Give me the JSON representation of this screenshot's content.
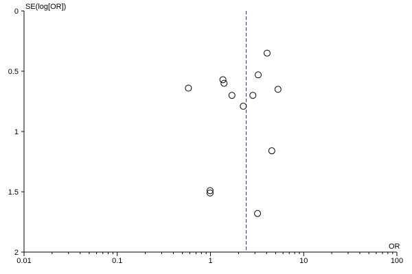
{
  "chart_data": {
    "type": "scatter",
    "plot_kind": "funnel",
    "xlabel": "OR",
    "ylabel": "SE(log[OR])",
    "x_scale": "log",
    "xlim": [
      0.01,
      100
    ],
    "ylim": [
      0,
      2
    ],
    "y_inverted": true,
    "x_ticks": [
      0.01,
      0.1,
      1,
      10,
      100
    ],
    "x_tick_labels": [
      "0.01",
      "0.1",
      "1",
      "10",
      "100"
    ],
    "y_ticks": [
      0,
      0.5,
      1,
      1.5,
      2
    ],
    "y_tick_labels": [
      "0",
      "0.5",
      "1",
      "1.5",
      "2"
    ],
    "reference_line_x": 2.42,
    "grid": false,
    "points": [
      {
        "x": 4.05,
        "y": 0.35
      },
      {
        "x": 3.25,
        "y": 0.53
      },
      {
        "x": 1.36,
        "y": 0.57
      },
      {
        "x": 1.4,
        "y": 0.6
      },
      {
        "x": 0.58,
        "y": 0.64
      },
      {
        "x": 5.3,
        "y": 0.65
      },
      {
        "x": 1.7,
        "y": 0.7
      },
      {
        "x": 2.85,
        "y": 0.7
      },
      {
        "x": 2.25,
        "y": 0.79
      },
      {
        "x": 4.55,
        "y": 1.16
      },
      {
        "x": 0.99,
        "y": 1.49
      },
      {
        "x": 0.99,
        "y": 1.51
      },
      {
        "x": 3.2,
        "y": 1.68
      }
    ]
  }
}
